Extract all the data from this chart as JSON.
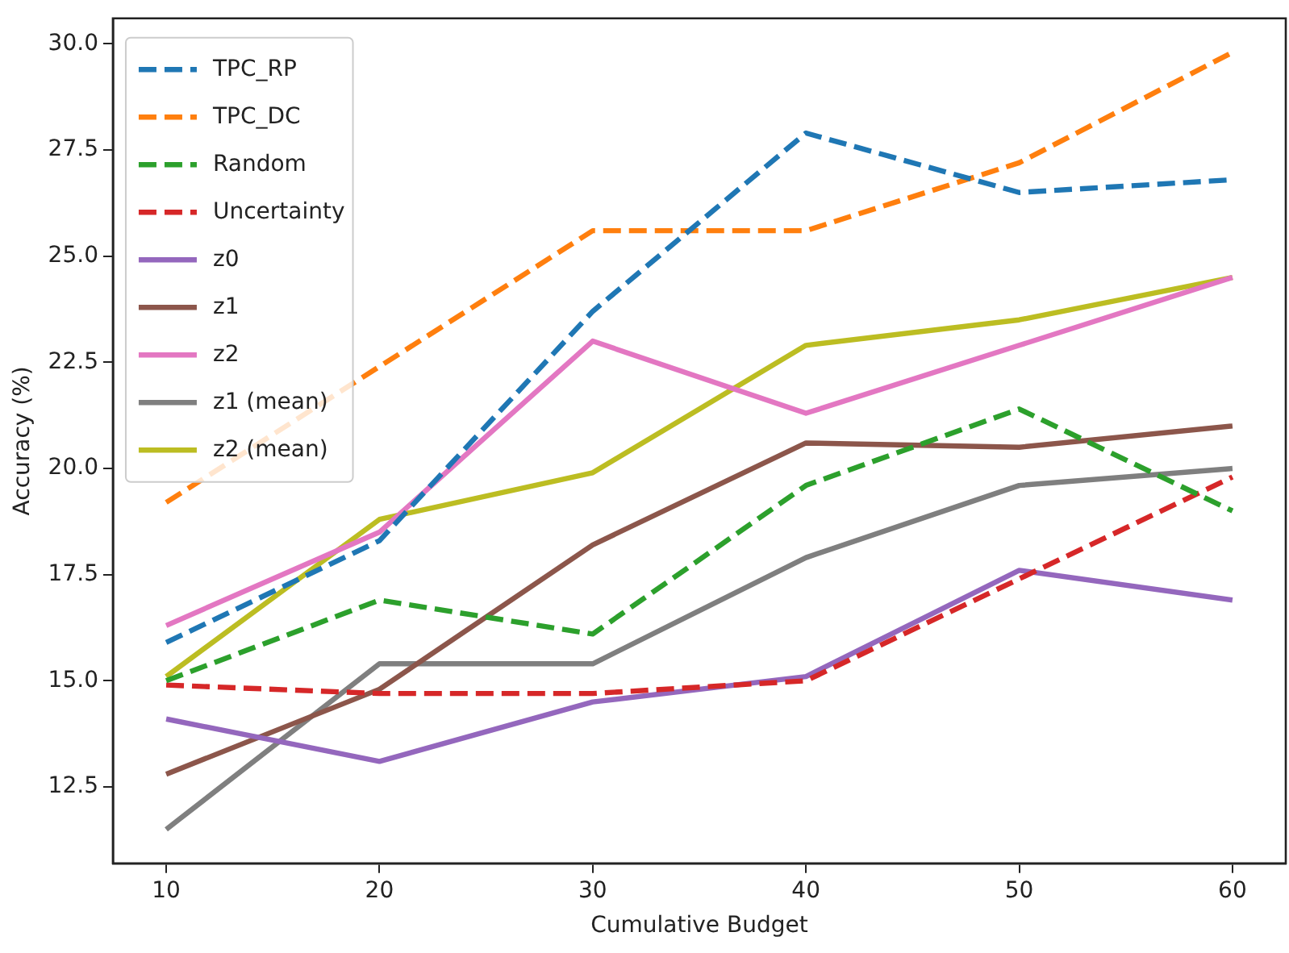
{
  "chart_data": {
    "type": "line",
    "xlabel": "Cumulative Budget",
    "ylabel": "Accuracy (%)",
    "x": [
      10,
      20,
      30,
      40,
      50,
      60
    ],
    "xlim": [
      7.5,
      62.5
    ],
    "xticks": [
      10,
      20,
      30,
      40,
      50,
      60
    ],
    "ylim": [
      10.7,
      30.6
    ],
    "yticks": [
      {
        "value": 12.5,
        "label": "12.5"
      },
      {
        "value": 15,
        "label": "15.0"
      },
      {
        "value": 17.5,
        "label": "17.5"
      },
      {
        "value": 20,
        "label": "20.0"
      },
      {
        "value": 22.5,
        "label": "22.5"
      },
      {
        "value": 25,
        "label": "25.0"
      },
      {
        "value": 27.5,
        "label": "27.5"
      },
      {
        "value": 30,
        "label": "30.0"
      }
    ],
    "grid": false,
    "legend": "top left",
    "marker": "none",
    "series": [
      {
        "name": "TPC_RP",
        "color": "#1f77b4",
        "line_style": "dashed",
        "values": [
          15.9,
          18.3,
          23.7,
          27.9,
          26.5,
          26.8
        ]
      },
      {
        "name": "TPC_DC",
        "color": "#ff7f0e",
        "line_style": "dashed",
        "values": [
          19.2,
          22.4,
          25.6,
          25.6,
          27.2,
          29.8
        ]
      },
      {
        "name": "Random",
        "color": "#2ca02c",
        "line_style": "dashed",
        "values": [
          15.0,
          16.9,
          16.1,
          19.6,
          21.4,
          19.0
        ]
      },
      {
        "name": "Uncertainty",
        "color": "#d62728",
        "line_style": "dashed",
        "values": [
          14.9,
          14.7,
          14.7,
          15.0,
          17.4,
          19.8
        ]
      },
      {
        "name": "z0",
        "color": "#9467bd",
        "line_style": "solid",
        "values": [
          14.1,
          13.1,
          14.5,
          15.1,
          17.6,
          16.9
        ]
      },
      {
        "name": "z1",
        "color": "#8c564b",
        "line_style": "solid",
        "values": [
          12.8,
          14.8,
          18.2,
          20.6,
          20.5,
          21.0
        ]
      },
      {
        "name": "z2",
        "color": "#e377c2",
        "line_style": "solid",
        "values": [
          16.3,
          18.5,
          23.0,
          21.3,
          22.9,
          24.5
        ]
      },
      {
        "name": "z1 (mean)",
        "color": "#7f7f7f",
        "line_style": "solid",
        "values": [
          11.5,
          15.4,
          15.4,
          17.9,
          19.6,
          20.0
        ]
      },
      {
        "name": "z2 (mean)",
        "color": "#bcbd22",
        "line_style": "solid",
        "values": [
          15.1,
          18.8,
          19.9,
          22.9,
          23.5,
          24.5
        ]
      }
    ]
  }
}
